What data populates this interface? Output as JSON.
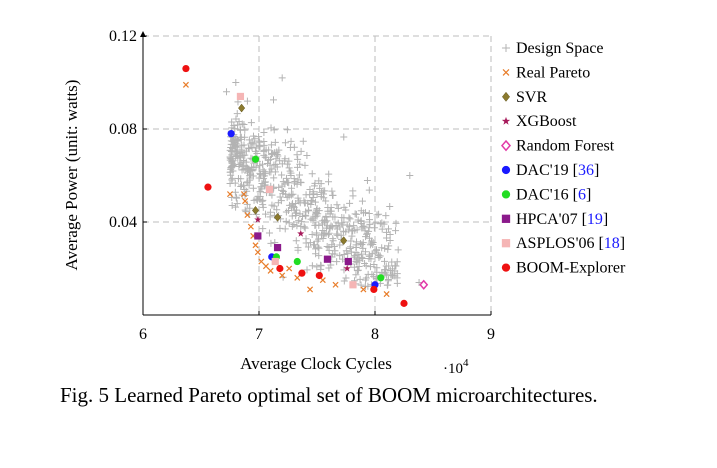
{
  "chart_data": {
    "type": "scatter",
    "title": "",
    "xlabel": "Average Clock Cycles",
    "ylabel": "Average Power (unit: watts)",
    "x_exponent": "·10^4",
    "x_exponent_display": {
      "base": "·10",
      "power": "4"
    },
    "xlim": [
      6,
      9
    ],
    "ylim": [
      0.0,
      0.12
    ],
    "xticks": [
      "6",
      "7",
      "8",
      "9"
    ],
    "yticks": [
      "0.04",
      "0.08",
      "0.12"
    ],
    "grid": true,
    "legend_position": "right",
    "series": [
      {
        "name": "Design Space",
        "marker": "plus",
        "color": "#b3b3b3",
        "points": []
      },
      {
        "name": "Real Pareto",
        "marker": "x",
        "color": "#e87d2a",
        "points": [
          [
            6.37,
            0.099
          ],
          [
            6.75,
            0.052
          ],
          [
            6.87,
            0.052
          ],
          [
            6.88,
            0.049
          ],
          [
            6.9,
            0.043
          ],
          [
            6.93,
            0.038
          ],
          [
            6.95,
            0.034
          ],
          [
            6.97,
            0.03
          ],
          [
            6.99,
            0.027
          ],
          [
            7.02,
            0.023
          ],
          [
            7.06,
            0.021
          ],
          [
            7.1,
            0.019
          ],
          [
            7.2,
            0.017
          ],
          [
            7.26,
            0.02
          ],
          [
            7.33,
            0.016
          ],
          [
            7.44,
            0.011
          ],
          [
            7.55,
            0.015
          ],
          [
            7.66,
            0.013
          ],
          [
            7.9,
            0.011
          ],
          [
            8.1,
            0.009
          ]
        ]
      },
      {
        "name": "SVR",
        "marker": "diamond",
        "color": "#8b7a2e",
        "points": [
          [
            6.85,
            0.089
          ],
          [
            6.97,
            0.045
          ],
          [
            7.16,
            0.042
          ],
          [
            7.73,
            0.032
          ]
        ]
      },
      {
        "name": "XGBoost",
        "marker": "star",
        "color": "#a6195a",
        "points": [
          [
            6.99,
            0.041
          ],
          [
            7.36,
            0.035
          ],
          [
            7.76,
            0.02
          ]
        ]
      },
      {
        "name": "Random Forest",
        "marker": "diamond-open",
        "color": "#e23aa8",
        "points": [
          [
            8.42,
            0.013
          ]
        ]
      },
      {
        "name": "DAC'19",
        "cite": "36",
        "marker": "circle",
        "color": "#1a1aff",
        "points": [
          [
            6.76,
            0.078
          ],
          [
            7.11,
            0.025
          ],
          [
            8.0,
            0.013
          ]
        ]
      },
      {
        "name": "DAC'16",
        "cite": "6",
        "marker": "circle",
        "color": "#22dd22",
        "points": [
          [
            6.97,
            0.067
          ],
          [
            7.15,
            0.025
          ],
          [
            7.33,
            0.023
          ],
          [
            8.05,
            0.016
          ]
        ]
      },
      {
        "name": "HPCA'07",
        "cite": "19",
        "marker": "square",
        "color": "#8b1a8b",
        "points": [
          [
            6.99,
            0.034
          ],
          [
            7.16,
            0.029
          ],
          [
            7.59,
            0.024
          ],
          [
            7.77,
            0.023
          ]
        ]
      },
      {
        "name": "ASPLOS'06",
        "cite": "18",
        "marker": "square",
        "color": "#f5b5b5",
        "points": [
          [
            6.84,
            0.094
          ],
          [
            7.09,
            0.054
          ],
          [
            7.14,
            0.023
          ],
          [
            7.81,
            0.013
          ]
        ]
      },
      {
        "name": "BOOM-Explorer",
        "marker": "circle",
        "color": "#ee1111",
        "points": [
          [
            6.37,
            0.106
          ],
          [
            6.56,
            0.055
          ],
          [
            7.18,
            0.02
          ],
          [
            7.37,
            0.018
          ],
          [
            7.52,
            0.017
          ],
          [
            7.99,
            0.011
          ],
          [
            8.25,
            0.005
          ]
        ]
      }
    ]
  },
  "caption": "Fig. 5 Learned Pareto optimal set of BOOM microarchitectures."
}
